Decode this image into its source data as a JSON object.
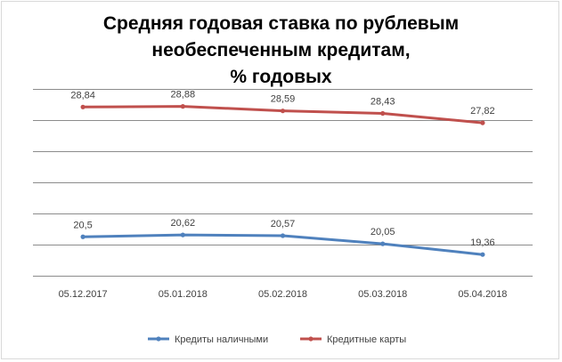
{
  "colors": {
    "series_cash": "#4f81bd",
    "series_cards": "#c0504d",
    "grid": "#8c8c8c",
    "text": "#404040"
  },
  "chart_data": {
    "type": "line",
    "title_lines": [
      "Средняя годовая ставка по рублевым",
      "необеспеченным кредитам,",
      "% годовых"
    ],
    "categories": [
      "05.12.2017",
      "05.01.2018",
      "05.02.2018",
      "05.03.2018",
      "05.04.2018"
    ],
    "series": [
      {
        "name": "Кредиты наличными",
        "color": "#4f81bd",
        "values": [
          20.5,
          20.62,
          20.57,
          20.05,
          19.36
        ],
        "labels": [
          "20,5",
          "20,62",
          "20,57",
          "20,05",
          "19,36"
        ]
      },
      {
        "name": "Кредитные карты",
        "color": "#c0504d",
        "values": [
          28.84,
          28.88,
          28.59,
          28.43,
          27.82
        ],
        "labels": [
          "28,84",
          "28,88",
          "28,59",
          "28,43",
          "27,82"
        ]
      }
    ],
    "ylim": [
      18,
      30
    ],
    "ytick_step": 2,
    "grid": true,
    "legend_position": "bottom",
    "markers": true
  }
}
